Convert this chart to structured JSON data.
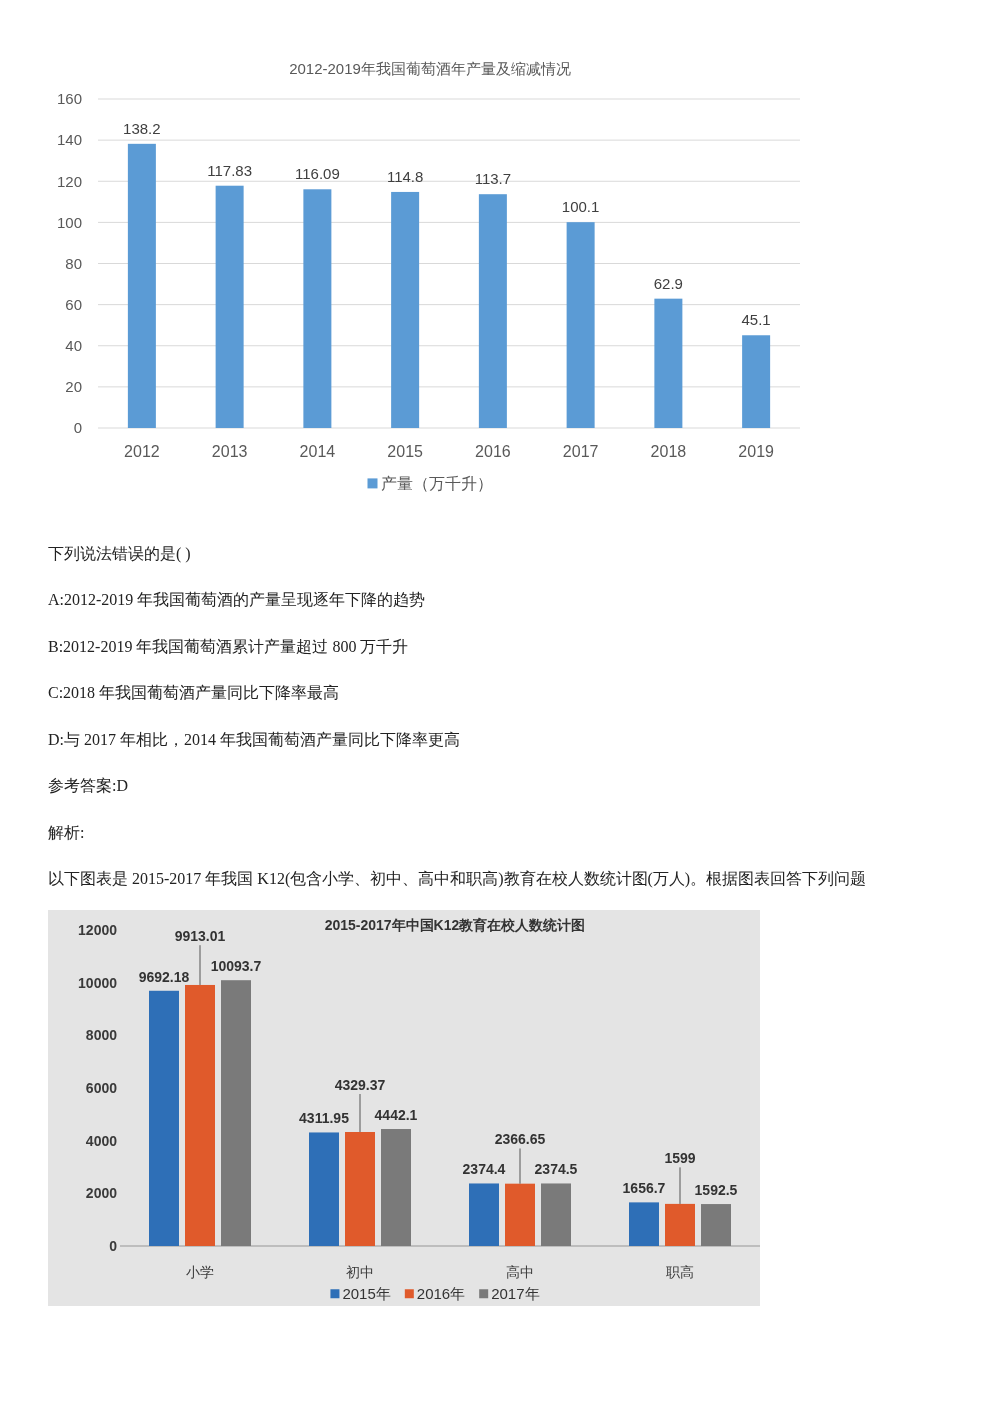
{
  "chart_data": [
    {
      "type": "bar",
      "title": "2012-2019年我国葡萄酒年产量及缩减情况",
      "categories": [
        "2012",
        "2013",
        "2014",
        "2015",
        "2016",
        "2017",
        "2018",
        "2019"
      ],
      "series": [
        {
          "name": "产量（万千升）",
          "color": "#5b9bd5",
          "values": [
            138.2,
            117.83,
            116.09,
            114.8,
            113.7,
            100.1,
            62.9,
            45.1
          ]
        }
      ],
      "ylim": [
        0,
        160
      ],
      "yticks": [
        0,
        20,
        40,
        60,
        80,
        100,
        120,
        140,
        160
      ],
      "grid": "y",
      "legend": "bottom",
      "data_labels": true
    },
    {
      "type": "other",
      "annotations": [
        "下列说法错误的是( )",
        "A:2012-2019 年我国葡萄酒的产量呈现逐年下降的趋势",
        "B:2012-2019 年我国葡萄酒累计产量超过 800 万千升",
        "C:2018 年我国葡萄酒产量同比下降率最高",
        "D:与 2017 年相比，2014 年我国葡萄酒产量同比下降率更高",
        "参考答案:D",
        "解析:",
        "以下图表是 2015-2017 年我国 K12(包含小学、初中、高中和职高)教育在校人数统计图(万人)。根据图表回答下列问题"
      ]
    },
    {
      "type": "bar",
      "title": "2015-2017年中国K12教育在校人数统计图",
      "categories": [
        "小学",
        "初中",
        "高中",
        "职高"
      ],
      "series": [
        {
          "name": "2015年",
          "color": "#2e6fb7",
          "values": [
            9692.18,
            4311.95,
            2374.4,
            1656.7
          ]
        },
        {
          "name": "2016年",
          "color": "#e05a2b",
          "values": [
            9913.01,
            4329.37,
            2366.65,
            1599
          ]
        },
        {
          "name": "2017年",
          "color": "#7a7a7a",
          "values": [
            10093.7,
            4442.1,
            2374.5,
            1592.5
          ]
        }
      ],
      "ylim": [
        0,
        12000
      ],
      "yticks": [
        0,
        2000,
        4000,
        6000,
        8000,
        10000,
        12000
      ],
      "legend": "bottom",
      "data_labels": true
    }
  ]
}
